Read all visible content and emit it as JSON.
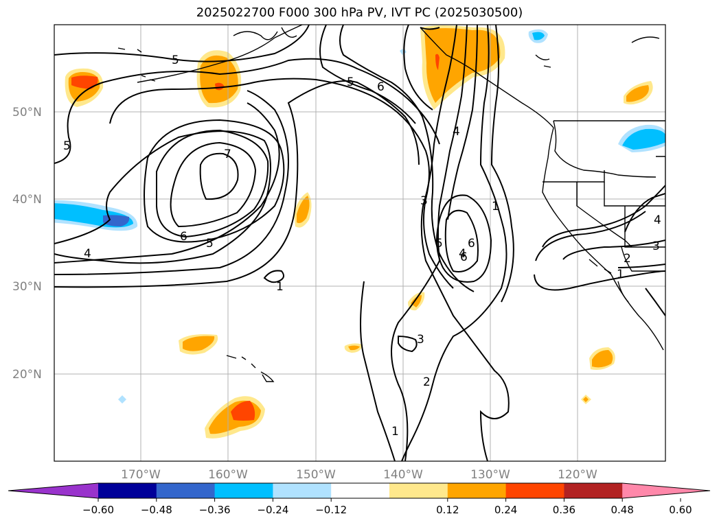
{
  "title": "2025022700 F000 300 hPa PV, IVT PC (2025030500)",
  "map": {
    "lat_labels": [
      "50°N",
      "40°N",
      "30°N",
      "20°N"
    ],
    "lon_labels": [
      "170°W",
      "160°W",
      "150°W",
      "140°W",
      "130°W",
      "120°W"
    ],
    "contour_labels": [
      "5",
      "5",
      "6",
      "7",
      "6",
      "5",
      "4",
      "1",
      "5",
      "6",
      "4",
      "3",
      "5",
      "6",
      "4",
      "1",
      "3",
      "2",
      "1",
      "2",
      "3",
      "4",
      "3",
      "1"
    ]
  },
  "colorbar": {
    "colors": [
      "#9933cc",
      "#000099",
      "#3366cc",
      "#00bfff",
      "#b0e2ff",
      "#ffffff",
      "#ffe88c",
      "#ffa500",
      "#ff4500",
      "#b22222",
      "#ff88aa"
    ],
    "tick_labels": [
      "−0.60",
      "−0.48",
      "−0.36",
      "−0.24",
      "−0.12",
      "0.12",
      "0.24",
      "0.36",
      "0.48",
      "0.60"
    ]
  }
}
